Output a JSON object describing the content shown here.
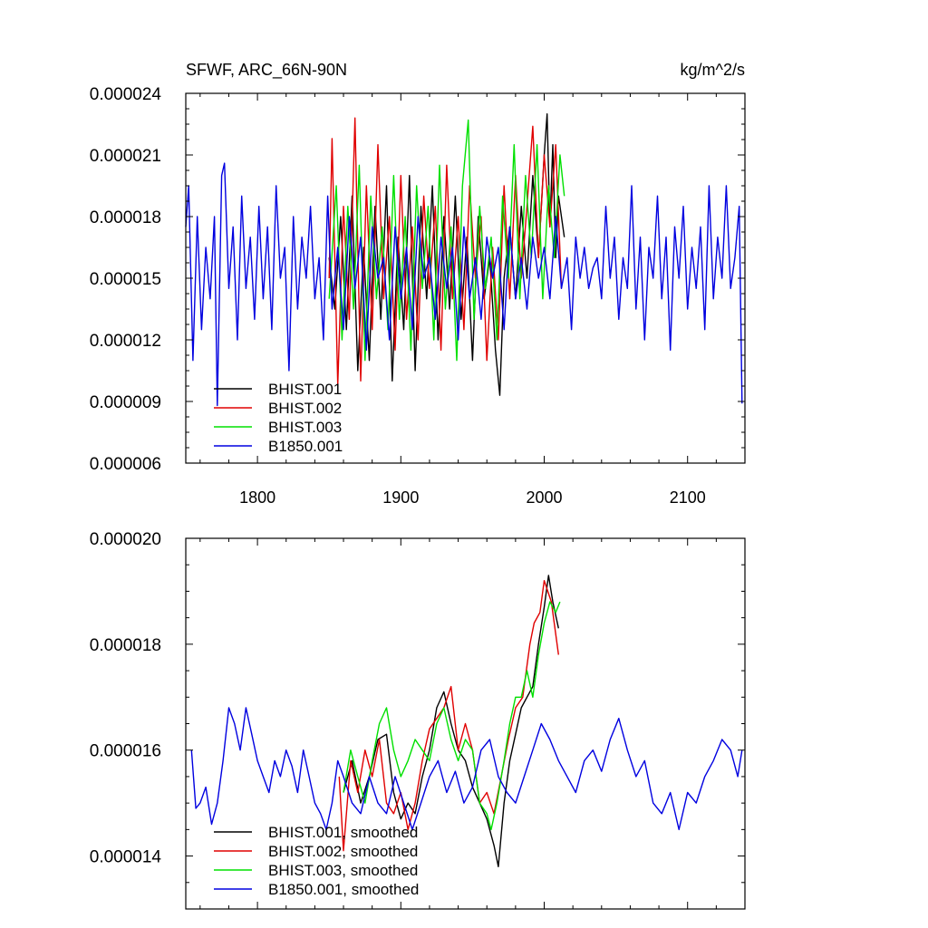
{
  "chart_data": [
    {
      "type": "line",
      "title": "SFWF, ARC_66N-90N",
      "units": "kg/m^2/s",
      "xlim": [
        1750,
        2140
      ],
      "ylim": [
        6e-06,
        2.4e-05
      ],
      "x_tick_values": [
        1800,
        1900,
        2000,
        2100
      ],
      "x_tick_labels": [
        "1800",
        "1900",
        "2000",
        "2100"
      ],
      "y_tick_values": [
        6e-06,
        9e-06,
        1.2e-05,
        1.5e-05,
        1.8e-05,
        2.1e-05,
        2.4e-05
      ],
      "y_tick_labels": [
        "0.000006",
        "0.000009",
        "0.000012",
        "0.000015",
        "0.000018",
        "0.000021",
        "0.000024"
      ],
      "legend_position": "bottom-left",
      "series": [
        {
          "name": "BHIST.001",
          "color": "#000000",
          "x": [
            1850,
            1854,
            1858,
            1862,
            1866,
            1870,
            1874,
            1878,
            1882,
            1886,
            1890,
            1894,
            1898,
            1902,
            1906,
            1910,
            1914,
            1918,
            1922,
            1926,
            1930,
            1934,
            1938,
            1942,
            1946,
            1950,
            1954,
            1958,
            1962,
            1966,
            1969,
            1972,
            1976,
            1980,
            1984,
            1988,
            1992,
            1996,
            2000,
            2002,
            2004,
            2006,
            2008,
            2010,
            2014
          ],
          "y": [
            1.6e-05,
            1.35e-05,
            1.8e-05,
            1.25e-05,
            1.9e-05,
            1.05e-05,
            1.65e-05,
            1.1e-05,
            1.85e-05,
            1.3e-05,
            1.95e-05,
            1e-05,
            1.7e-05,
            1.25e-05,
            2e-05,
            1.05e-05,
            1.85e-05,
            1.4e-05,
            1.95e-05,
            1.2e-05,
            1.8e-05,
            1.35e-05,
            1.9e-05,
            1.3e-05,
            1.7e-05,
            1.1e-05,
            1.8e-05,
            1.4e-05,
            1.6e-05,
            1.15e-05,
            9.3e-06,
            1.5e-05,
            1.75e-05,
            1.4e-05,
            1.85e-05,
            1.5e-05,
            2e-05,
            1.6e-05,
            2.1e-05,
            2.3e-05,
            1.75e-05,
            2.15e-05,
            1.6e-05,
            1.9e-05,
            1.7e-05
          ]
        },
        {
          "name": "BHIST.002",
          "color": "#e00000",
          "x": [
            1850,
            1852,
            1856,
            1860,
            1864,
            1868,
            1872,
            1876,
            1880,
            1884,
            1888,
            1892,
            1896,
            1900,
            1904,
            1908,
            1912,
            1916,
            1920,
            1924,
            1928,
            1932,
            1936,
            1940,
            1944,
            1948,
            1952,
            1956,
            1960,
            1964,
            1968,
            1972,
            1976,
            1980,
            1984,
            1988,
            1992,
            1996,
            2000,
            2004,
            2008,
            2012
          ],
          "y": [
            1.5e-05,
            2.18e-05,
            9.8e-06,
            1.85e-05,
            1.3e-05,
            2.28e-05,
            1e-05,
            1.95e-05,
            1.25e-05,
            2.15e-05,
            1.4e-05,
            1.8e-05,
            1.15e-05,
            2e-05,
            1.3e-05,
            1.75e-05,
            1.2e-05,
            1.9e-05,
            1.45e-05,
            1.85e-05,
            1.15e-05,
            2.05e-05,
            1.4e-05,
            1.8e-05,
            1.25e-05,
            1.95e-05,
            1.5e-05,
            1.8e-05,
            1.1e-05,
            1.65e-05,
            1.2e-05,
            1.95e-05,
            1.4e-05,
            2e-05,
            1.5e-05,
            1.85e-05,
            2.24e-05,
            1.6e-05,
            2.1e-05,
            1.75e-05,
            2.15e-05,
            1.45e-05
          ]
        },
        {
          "name": "BHIST.003",
          "color": "#00e000",
          "x": [
            1850,
            1855,
            1859,
            1863,
            1867,
            1871,
            1875,
            1879,
            1883,
            1887,
            1891,
            1895,
            1899,
            1903,
            1907,
            1911,
            1915,
            1919,
            1923,
            1927,
            1931,
            1935,
            1939,
            1943,
            1947,
            1951,
            1955,
            1959,
            1963,
            1967,
            1971,
            1975,
            1979,
            1983,
            1987,
            1991,
            1995,
            1999,
            2003,
            2007,
            2011,
            2014
          ],
          "y": [
            1.4e-05,
            1.95e-05,
            1.2e-05,
            1.85e-05,
            1.35e-05,
            2.05e-05,
            1.1e-05,
            1.9e-05,
            1.4e-05,
            1.75e-05,
            1.25e-05,
            2e-05,
            1.3e-05,
            1.8e-05,
            1.15e-05,
            1.95e-05,
            1.45e-05,
            1.85e-05,
            1.2e-05,
            2.05e-05,
            1.35e-05,
            1.75e-05,
            1.1e-05,
            1.95e-05,
            2.27e-05,
            1.3e-05,
            1.85e-05,
            1.45e-05,
            1.7e-05,
            1.2e-05,
            1.9e-05,
            1.5e-05,
            2.15e-05,
            1.4e-05,
            2e-05,
            1.6e-05,
            2.15e-05,
            1.4e-05,
            1.95e-05,
            1.6e-05,
            2.1e-05,
            1.9e-05
          ]
        },
        {
          "name": "B1850.001",
          "color": "#0000e0",
          "x": [
            1750,
            1752,
            1755,
            1758,
            1761,
            1764,
            1767,
            1770,
            1772,
            1775,
            1777,
            1780,
            1783,
            1786,
            1789,
            1792,
            1795,
            1798,
            1801,
            1804,
            1807,
            1810,
            1813,
            1816,
            1819,
            1822,
            1825,
            1828,
            1831,
            1834,
            1837,
            1840,
            1843,
            1846,
            1849,
            1852,
            1856,
            1860,
            1864,
            1868,
            1872,
            1876,
            1880,
            1884,
            1888,
            1892,
            1896,
            1900,
            1904,
            1908,
            1912,
            1916,
            1920,
            1924,
            1928,
            1932,
            1936,
            1940,
            1944,
            1948,
            1952,
            1956,
            1960,
            1964,
            1968,
            1972,
            1976,
            1980,
            1984,
            1988,
            1992,
            1996,
            2000,
            2004,
            2008,
            2012,
            2016,
            2019,
            2022,
            2025,
            2028,
            2031,
            2034,
            2037,
            2040,
            2043,
            2046,
            2049,
            2052,
            2055,
            2058,
            2061,
            2064,
            2067,
            2070,
            2073,
            2076,
            2079,
            2082,
            2085,
            2088,
            2091,
            2094,
            2097,
            2100,
            2103,
            2106,
            2109,
            2112,
            2115,
            2118,
            2121,
            2124,
            2127,
            2130,
            2133,
            2136,
            2138
          ],
          "y": [
            1.75e-05,
            1.95e-05,
            1.1e-05,
            1.8e-05,
            1.25e-05,
            1.65e-05,
            1.4e-05,
            1.8e-05,
            8.8e-06,
            2e-05,
            2.06e-05,
            1.45e-05,
            1.75e-05,
            1.2e-05,
            1.9e-05,
            1.45e-05,
            1.7e-05,
            1.3e-05,
            1.85e-05,
            1.4e-05,
            1.75e-05,
            1.25e-05,
            1.95e-05,
            1.5e-05,
            1.65e-05,
            1.05e-05,
            1.8e-05,
            1.35e-05,
            1.7e-05,
            1.5e-05,
            1.85e-05,
            1.4e-05,
            1.6e-05,
            1.2e-05,
            1.9e-05,
            1.35e-05,
            1.65e-05,
            1.25e-05,
            1.8e-05,
            1.45e-05,
            1.7e-05,
            1.15e-05,
            1.75e-05,
            1.5e-05,
            1.6e-05,
            1.2e-05,
            1.75e-05,
            1.4e-05,
            1.65e-05,
            1.25e-05,
            1.8e-05,
            1.5e-05,
            1.6e-05,
            1.3e-05,
            1.7e-05,
            1.45e-05,
            1.65e-05,
            1.2e-05,
            1.75e-05,
            1.4e-05,
            1.6e-05,
            1.3e-05,
            1.7e-05,
            1.5e-05,
            1.65e-05,
            1.25e-05,
            1.75e-05,
            1.4e-05,
            1.6e-05,
            1.35e-05,
            1.7e-05,
            1.5e-05,
            1.65e-05,
            1.4e-05,
            1.8e-05,
            1.45e-05,
            1.6e-05,
            1.25e-05,
            1.7e-05,
            1.5e-05,
            1.65e-05,
            1.45e-05,
            1.55e-05,
            1.6e-05,
            1.4e-05,
            1.85e-05,
            1.5e-05,
            1.7e-05,
            1.3e-05,
            1.6e-05,
            1.45e-05,
            1.95e-05,
            1.35e-05,
            1.7e-05,
            1.2e-05,
            1.65e-05,
            1.5e-05,
            1.9e-05,
            1.4e-05,
            1.7e-05,
            1.15e-05,
            1.75e-05,
            1.5e-05,
            1.85e-05,
            1.35e-05,
            1.65e-05,
            1.45e-05,
            1.75e-05,
            1.25e-05,
            1.95e-05,
            1.4e-05,
            1.7e-05,
            1.5e-05,
            1.95e-05,
            1.45e-05,
            1.6e-05,
            1.85e-05,
            8.9e-06
          ]
        }
      ]
    },
    {
      "type": "line",
      "xlim": [
        1750,
        2140
      ],
      "ylim": [
        1.3e-05,
        2e-05
      ],
      "x_tick_values": [
        1800,
        1900,
        2000,
        2100
      ],
      "y_tick_values": [
        1.4e-05,
        1.6e-05,
        1.8e-05,
        2e-05
      ],
      "y_tick_labels": [
        "0.000014",
        "0.000016",
        "0.000018",
        "0.000020"
      ],
      "legend_position": "bottom-left",
      "series": [
        {
          "name": "BHIST.001, smoothed",
          "color": "#000000",
          "x": [
            1860,
            1866,
            1872,
            1878,
            1884,
            1890,
            1895,
            1900,
            1905,
            1910,
            1915,
            1920,
            1925,
            1930,
            1935,
            1940,
            1945,
            1950,
            1955,
            1960,
            1965,
            1968,
            1972,
            1976,
            1980,
            1984,
            1988,
            1992,
            1996,
            2000,
            2003,
            2006,
            2010
          ],
          "y": [
            1.52e-05,
            1.58e-05,
            1.5e-05,
            1.55e-05,
            1.62e-05,
            1.63e-05,
            1.52e-05,
            1.47e-05,
            1.5e-05,
            1.48e-05,
            1.55e-05,
            1.6e-05,
            1.68e-05,
            1.71e-05,
            1.65e-05,
            1.6e-05,
            1.58e-05,
            1.53e-05,
            1.5e-05,
            1.47e-05,
            1.42e-05,
            1.38e-05,
            1.5e-05,
            1.58e-05,
            1.63e-05,
            1.68e-05,
            1.7e-05,
            1.72e-05,
            1.8e-05,
            1.87e-05,
            1.93e-05,
            1.88e-05,
            1.83e-05
          ]
        },
        {
          "name": "BHIST.002, smoothed",
          "color": "#e00000",
          "x": [
            1857,
            1860,
            1865,
            1870,
            1875,
            1880,
            1885,
            1890,
            1895,
            1900,
            1905,
            1910,
            1915,
            1920,
            1925,
            1930,
            1935,
            1940,
            1945,
            1950,
            1955,
            1960,
            1965,
            1970,
            1975,
            1980,
            1985,
            1990,
            1993,
            1997,
            2000,
            2005,
            2010
          ],
          "y": [
            1.55e-05,
            1.41e-05,
            1.58e-05,
            1.52e-05,
            1.6e-05,
            1.55e-05,
            1.62e-05,
            1.5e-05,
            1.48e-05,
            1.52e-05,
            1.45e-05,
            1.5e-05,
            1.58e-05,
            1.64e-05,
            1.66e-05,
            1.68e-05,
            1.72e-05,
            1.6e-05,
            1.65e-05,
            1.6e-05,
            1.5e-05,
            1.52e-05,
            1.48e-05,
            1.55e-05,
            1.62e-05,
            1.68e-05,
            1.7e-05,
            1.8e-05,
            1.84e-05,
            1.86e-05,
            1.92e-05,
            1.88e-05,
            1.78e-05
          ]
        },
        {
          "name": "BHIST.003, smoothed",
          "color": "#00e000",
          "x": [
            1860,
            1865,
            1870,
            1875,
            1880,
            1885,
            1890,
            1895,
            1900,
            1905,
            1910,
            1915,
            1920,
            1925,
            1930,
            1935,
            1940,
            1945,
            1950,
            1955,
            1960,
            1963,
            1967,
            1972,
            1976,
            1980,
            1984,
            1988,
            1992,
            1996,
            2000,
            2004,
            2008,
            2011
          ],
          "y": [
            1.52e-05,
            1.6e-05,
            1.55e-05,
            1.5e-05,
            1.58e-05,
            1.65e-05,
            1.68e-05,
            1.6e-05,
            1.55e-05,
            1.58e-05,
            1.62e-05,
            1.6e-05,
            1.58e-05,
            1.65e-05,
            1.68e-05,
            1.62e-05,
            1.58e-05,
            1.62e-05,
            1.6e-05,
            1.5e-05,
            1.48e-05,
            1.45e-05,
            1.5e-05,
            1.58e-05,
            1.65e-05,
            1.7e-05,
            1.7e-05,
            1.75e-05,
            1.7e-05,
            1.78e-05,
            1.84e-05,
            1.88e-05,
            1.86e-05,
            1.88e-05
          ]
        },
        {
          "name": "B1850.001, smoothed",
          "color": "#0000e0",
          "x": [
            1754,
            1757,
            1760,
            1764,
            1768,
            1772,
            1776,
            1780,
            1784,
            1788,
            1792,
            1796,
            1800,
            1804,
            1808,
            1812,
            1816,
            1820,
            1824,
            1828,
            1832,
            1836,
            1840,
            1844,
            1848,
            1852,
            1856,
            1860,
            1866,
            1872,
            1878,
            1884,
            1890,
            1896,
            1902,
            1908,
            1914,
            1920,
            1926,
            1932,
            1938,
            1944,
            1950,
            1956,
            1962,
            1968,
            1974,
            1980,
            1986,
            1992,
            1998,
            2004,
            2010,
            2016,
            2022,
            2028,
            2034,
            2040,
            2046,
            2052,
            2058,
            2064,
            2070,
            2076,
            2082,
            2088,
            2094,
            2100,
            2106,
            2112,
            2118,
            2124,
            2130,
            2135,
            2138
          ],
          "y": [
            1.6e-05,
            1.49e-05,
            1.5e-05,
            1.53e-05,
            1.46e-05,
            1.5e-05,
            1.58e-05,
            1.68e-05,
            1.65e-05,
            1.6e-05,
            1.68e-05,
            1.63e-05,
            1.58e-05,
            1.55e-05,
            1.52e-05,
            1.58e-05,
            1.55e-05,
            1.6e-05,
            1.57e-05,
            1.52e-05,
            1.6e-05,
            1.55e-05,
            1.5e-05,
            1.48e-05,
            1.45e-05,
            1.5e-05,
            1.58e-05,
            1.55e-05,
            1.5e-05,
            1.48e-05,
            1.55e-05,
            1.5e-05,
            1.48e-05,
            1.55e-05,
            1.5e-05,
            1.45e-05,
            1.5e-05,
            1.55e-05,
            1.58e-05,
            1.52e-05,
            1.56e-05,
            1.5e-05,
            1.53e-05,
            1.6e-05,
            1.62e-05,
            1.55e-05,
            1.52e-05,
            1.5e-05,
            1.55e-05,
            1.6e-05,
            1.65e-05,
            1.62e-05,
            1.58e-05,
            1.55e-05,
            1.52e-05,
            1.58e-05,
            1.6e-05,
            1.56e-05,
            1.62e-05,
            1.66e-05,
            1.6e-05,
            1.55e-05,
            1.58e-05,
            1.5e-05,
            1.48e-05,
            1.52e-05,
            1.45e-05,
            1.52e-05,
            1.5e-05,
            1.55e-05,
            1.58e-05,
            1.62e-05,
            1.6e-05,
            1.55e-05,
            1.6e-05
          ]
        }
      ]
    }
  ]
}
